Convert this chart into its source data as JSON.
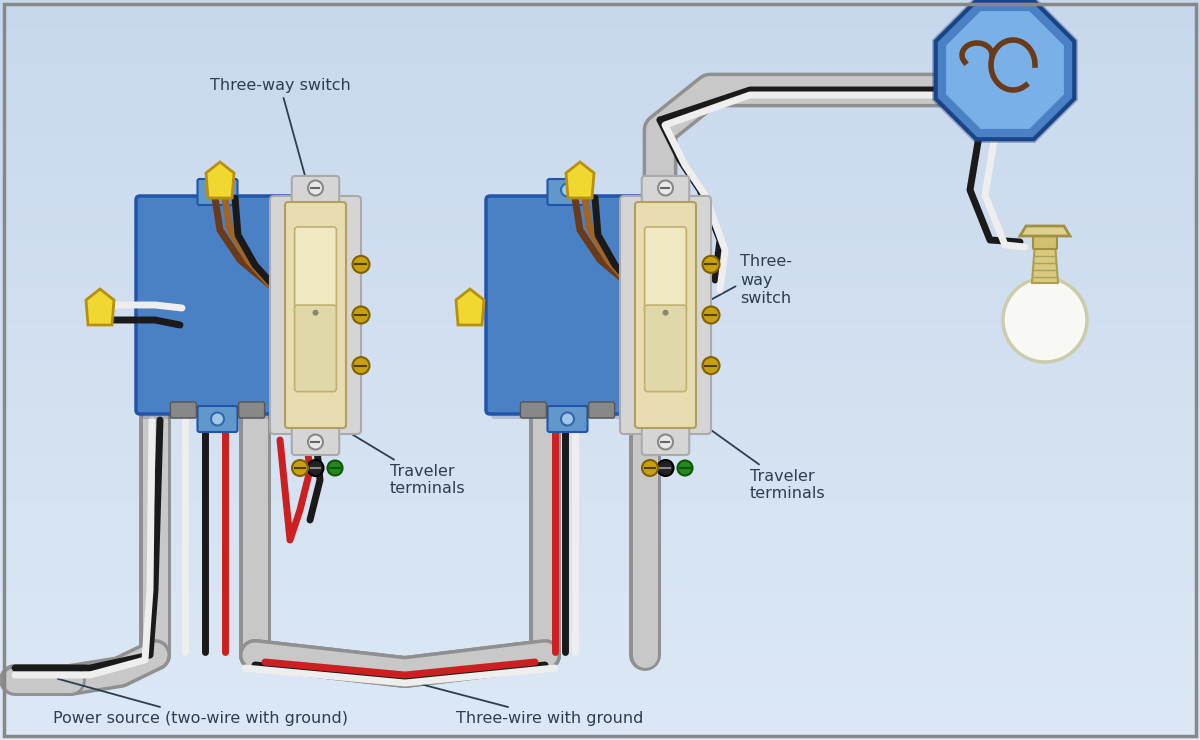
{
  "bg_color": "#ccd8e8",
  "border_color": "#888888",
  "text_color": "#2c3e50",
  "box_blue": "#4a80c4",
  "box_blue_edge": "#2255aa",
  "switch_metal": "#d8d8d8",
  "switch_body": "#e8ddb0",
  "wire_nut": "#f0d830",
  "wire_nut_edge": "#b89010",
  "conduit_dark": "#909090",
  "conduit_light": "#c8c8c8",
  "oct_face": "#4a80c4",
  "oct_inner": "#7ab0e8",
  "oct_edge": "#1a4488",
  "bulb_glass": "#f5f5f0",
  "bulb_base": "#d8c878",
  "bulb_edge": "#c8b860",
  "wire_black": "#1a1a1a",
  "wire_white": "#eeeeee",
  "wire_red": "#cc2020",
  "wire_brown_dark": "#6b3a18",
  "wire_brown_med": "#a06428",
  "wire_gray": "#808080",
  "wire_green": "#228822",
  "label_fs": 11.5,
  "label_three_way_1": "Three-way switch",
  "label_three_way_2": "Three-\nway\nswitch",
  "label_traveler_1": "Traveler\nterminals",
  "label_traveler_2": "Traveler\nterminals",
  "label_power": "Power source (two-wire with ground)",
  "label_three_wire": "Three-wire with ground",
  "figsize": [
    12.0,
    7.4
  ],
  "dpi": 100
}
